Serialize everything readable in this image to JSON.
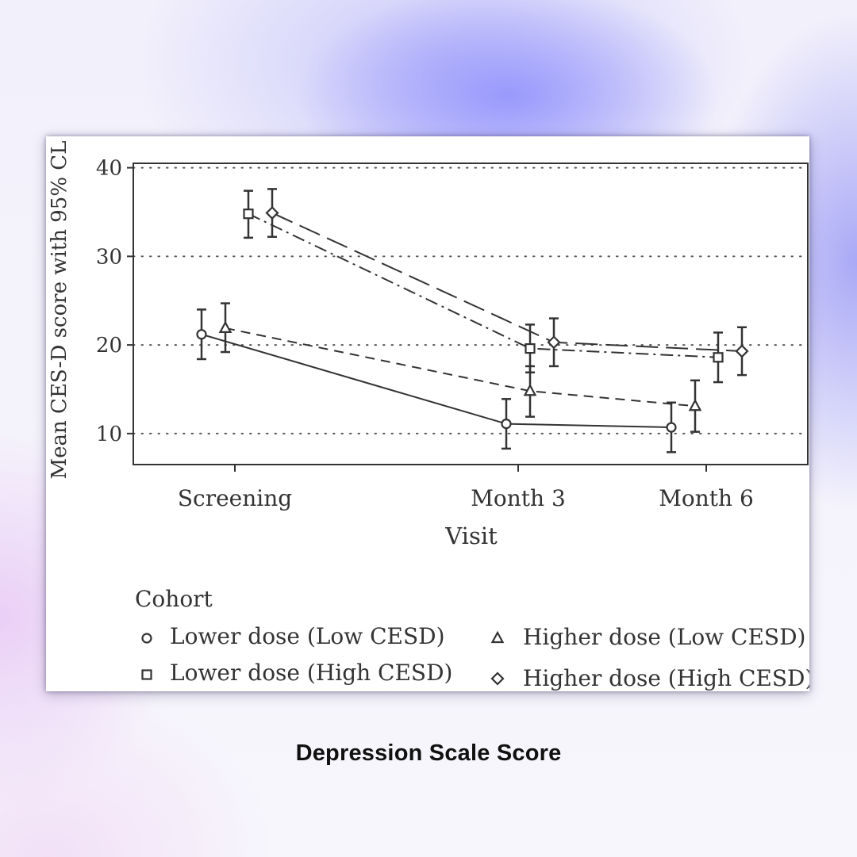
{
  "caption": "Depression Scale Score",
  "chart_data": {
    "type": "line",
    "ylabel": "Mean CES-D score with 95% CL",
    "xlabel": "Visit",
    "ylim": [
      6.5,
      40.5
    ],
    "yticks": [
      10,
      20,
      30,
      40
    ],
    "grid": "horizontal dotted",
    "categories": [
      "Screening",
      "Month 3",
      "Month 6"
    ],
    "legend_title": "Cohort",
    "legend_position": "bottom",
    "series": [
      {
        "name": "Lower dose (Low CESD)",
        "marker": "circle",
        "line": "solid",
        "values": [
          21.2,
          11.1,
          10.7
        ],
        "ci_low": [
          18.4,
          8.3,
          7.9
        ],
        "ci_high": [
          24.0,
          13.9,
          13.5
        ]
      },
      {
        "name": "Higher dose (Low CESD)",
        "marker": "triangle",
        "line": "dashed",
        "values": [
          21.9,
          14.8,
          13.1
        ],
        "ci_low": [
          19.2,
          11.9,
          10.2
        ],
        "ci_high": [
          24.7,
          17.6,
          16.0
        ]
      },
      {
        "name": "Lower dose (High CESD)",
        "marker": "square",
        "line": "dashdot",
        "values": [
          34.8,
          19.6,
          18.6
        ],
        "ci_low": [
          32.1,
          16.9,
          15.8
        ],
        "ci_high": [
          37.4,
          22.3,
          21.4
        ]
      },
      {
        "name": "Higher dose (High CESD)",
        "marker": "diamond",
        "line": "longdash",
        "values": [
          34.9,
          20.3,
          19.3
        ],
        "ci_low": [
          32.2,
          17.6,
          16.6
        ],
        "ci_high": [
          37.6,
          23.0,
          22.0
        ]
      }
    ]
  },
  "colors": {
    "ink": "#333333",
    "grid": "#555555",
    "caption": "#111111"
  }
}
